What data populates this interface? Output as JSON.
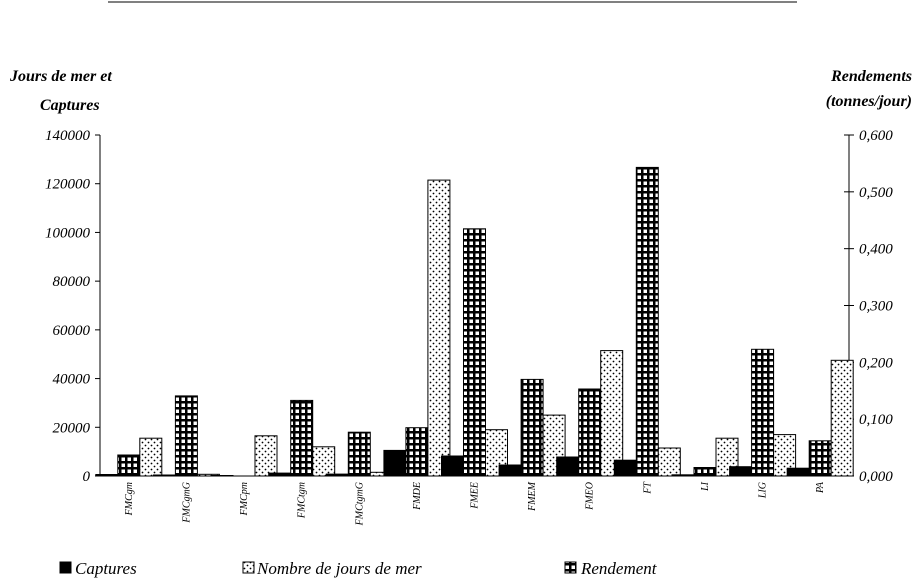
{
  "chart_data": {
    "type": "bar",
    "y_left_label_line1": "Jours de mer et",
    "y_left_label_line2": "Captures",
    "y_right_label_line1": "Rendements",
    "y_right_label_line2": "(tonnes/jour)",
    "ylim_left": [
      0,
      140000
    ],
    "ylim_right": [
      0,
      0.6
    ],
    "left_ticks": [
      "0",
      "20000",
      "40000",
      "60000",
      "80000",
      "100000",
      "120000",
      "140000"
    ],
    "right_ticks": [
      "0,000",
      "0,100",
      "0,200",
      "0,300",
      "0,400",
      "0,500",
      "0,600"
    ],
    "categories": [
      "FMCgm",
      "FMCgmG",
      "FMCpm",
      "FMCtgm",
      "FMCtgmG",
      "FMDE",
      "FMEE",
      "FMEM",
      "FMEO",
      "FT",
      "LI",
      "LIG",
      "PA"
    ],
    "series": [
      {
        "name": "Captures",
        "axis": "left",
        "pattern": "solid",
        "color": "#000000",
        "values": [
          600,
          400,
          200,
          1200,
          800,
          10500,
          8200,
          4500,
          7800,
          6500,
          500,
          3800,
          3200
        ]
      },
      {
        "name": "Nombre de jours de mer",
        "axis": "left",
        "pattern": "dots",
        "color": "#000000",
        "values": [
          15500,
          700,
          16500,
          12000,
          1500,
          121500,
          19000,
          25000,
          51500,
          11500,
          15500,
          17000,
          47500
        ]
      },
      {
        "name": "Rendement",
        "axis": "right",
        "pattern": "grid",
        "color": "#000000",
        "values": [
          0.037,
          0.141,
          0.0,
          0.133,
          0.077,
          0.085,
          0.435,
          0.17,
          0.153,
          0.543,
          0.015,
          0.223,
          0.062
        ]
      }
    ],
    "legend_position": "bottom",
    "grid": false
  },
  "legend": {
    "captures": "Captures",
    "jours": "Nombre de jours de mer",
    "rendement": "Rendement"
  }
}
